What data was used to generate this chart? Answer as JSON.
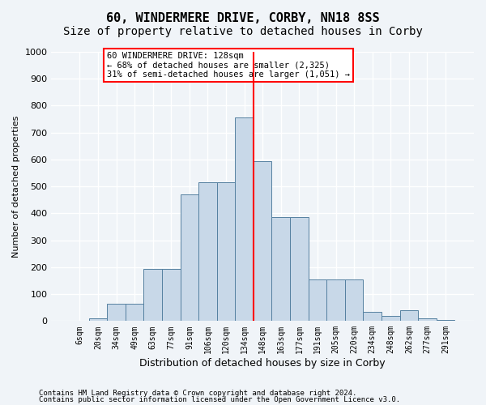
{
  "title": "60, WINDERMERE DRIVE, CORBY, NN18 8SS",
  "subtitle": "Size of property relative to detached houses in Corby",
  "xlabel": "Distribution of detached houses by size in Corby",
  "ylabel": "Number of detached properties",
  "footnote1": "Contains HM Land Registry data © Crown copyright and database right 2024.",
  "footnote2": "Contains public sector information licensed under the Open Government Licence v3.0.",
  "categories": [
    "6sqm",
    "20sqm",
    "34sqm",
    "49sqm",
    "63sqm",
    "77sqm",
    "91sqm",
    "106sqm",
    "120sqm",
    "134sqm",
    "148sqm",
    "163sqm",
    "177sqm",
    "191sqm",
    "205sqm",
    "220sqm",
    "234sqm",
    "248sqm",
    "262sqm",
    "277sqm",
    "291sqm"
  ],
  "values": [
    0,
    10,
    65,
    65,
    195,
    195,
    470,
    515,
    515,
    755,
    595,
    385,
    385,
    155,
    155,
    155,
    35,
    20,
    40,
    10,
    5
  ],
  "bar_color": "#c8d8e8",
  "bar_edge_color": "#5580a0",
  "vline_x": 9.5,
  "vline_color": "red",
  "annotation_text": "60 WINDERMERE DRIVE: 128sqm\n← 68% of detached houses are smaller (2,325)\n31% of semi-detached houses are larger (1,051) →",
  "annotation_box_color": "red",
  "ylim": [
    0,
    1000
  ],
  "yticks": [
    0,
    100,
    200,
    300,
    400,
    500,
    600,
    700,
    800,
    900,
    1000
  ],
  "bg_color": "#f0f4f8",
  "grid_color": "white",
  "title_fontsize": 11,
  "subtitle_fontsize": 10
}
